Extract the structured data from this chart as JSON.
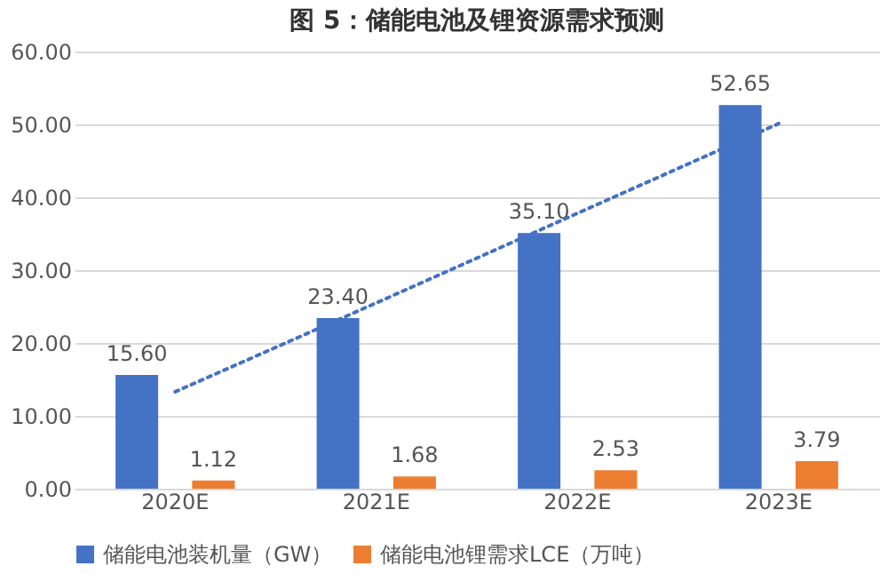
{
  "chart_data": {
    "type": "bar",
    "title": "图 5：储能电池及锂资源需求预测",
    "categories": [
      "2020E",
      "2021E",
      "2022E",
      "2023E"
    ],
    "series": [
      {
        "name": "储能电池装机量（GW）",
        "color": "#4472c4",
        "values": [
          15.6,
          23.4,
          35.1,
          52.65
        ],
        "value_labels": [
          "15.60",
          "23.40",
          "35.10",
          "52.65"
        ]
      },
      {
        "name": "储能电池锂需求LCE（万吨）",
        "color": "#ed7d31",
        "values": [
          1.12,
          1.68,
          2.53,
          3.79
        ],
        "value_labels": [
          "1.12",
          "1.68",
          "2.53",
          "3.79"
        ]
      },
      {
        "type": "line",
        "color": "#4472c4",
        "line_style": "dotted",
        "values": [
          13.3,
          25.5,
          37.8,
          50.1
        ]
      }
    ],
    "ylim": [
      0,
      60
    ],
    "yticks": [
      {
        "value": 0,
        "label": "0.00"
      },
      {
        "value": 10,
        "label": "10.00"
      },
      {
        "value": 20,
        "label": "20.00"
      },
      {
        "value": 30,
        "label": "30.00"
      },
      {
        "value": 40,
        "label": "40.00"
      },
      {
        "value": 50,
        "label": "50.00"
      },
      {
        "value": 60,
        "label": "60.00"
      }
    ],
    "grid": "y",
    "legend": "bottom"
  }
}
